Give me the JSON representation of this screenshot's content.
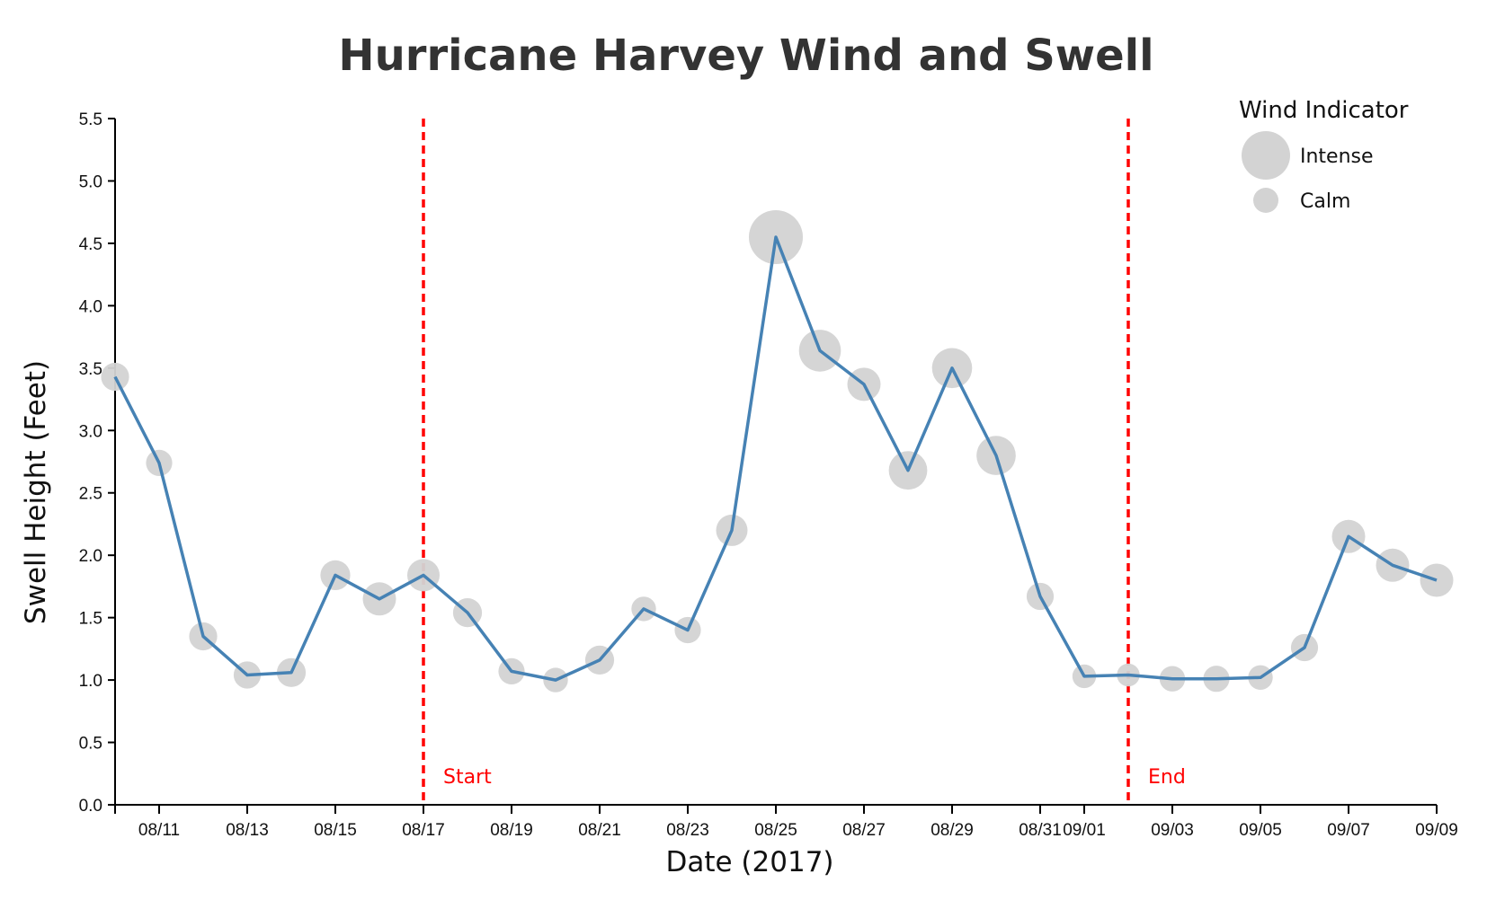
{
  "chart_data": {
    "type": "line",
    "title": "Hurricane Harvey Wind and Swell",
    "xlabel": "Date (2017)",
    "ylabel": "Swell Height (Feet)",
    "ylim": [
      0,
      5.5
    ],
    "yticks": [
      "0.0",
      "0.5",
      "1.0",
      "1.5",
      "2.0",
      "2.5",
      "3.0",
      "3.5",
      "4.0",
      "4.5",
      "5.0",
      "5.5"
    ],
    "xtick_labels": [
      "08/11",
      "08/13",
      "08/15",
      "08/17",
      "08/19",
      "08/21",
      "08/23",
      "08/25",
      "08/27",
      "08/29",
      "08/31",
      "09/01",
      "09/03",
      "09/05",
      "09/07",
      "09/09"
    ],
    "xtick_dates": [
      "2017-08-11",
      "2017-08-13",
      "2017-08-15",
      "2017-08-17",
      "2017-08-19",
      "2017-08-21",
      "2017-08-23",
      "2017-08-25",
      "2017-08-27",
      "2017-08-29",
      "2017-08-31",
      "2017-09-01",
      "2017-09-03",
      "2017-09-05",
      "2017-09-07",
      "2017-09-09"
    ],
    "xlim": [
      "2017-08-10",
      "2017-09-09"
    ],
    "grid": false,
    "line_color": "#4682b4",
    "point_color": "#d3d3d3",
    "series": [
      {
        "x": [
          "2017-08-10",
          "2017-08-11",
          "2017-08-12",
          "2017-08-13",
          "2017-08-14",
          "2017-08-15",
          "2017-08-16",
          "2017-08-17",
          "2017-08-18",
          "2017-08-19",
          "2017-08-20",
          "2017-08-21",
          "2017-08-22",
          "2017-08-23",
          "2017-08-24",
          "2017-08-25",
          "2017-08-26",
          "2017-08-27",
          "2017-08-28",
          "2017-08-29",
          "2017-08-30",
          "2017-08-31",
          "2017-09-01",
          "2017-09-02",
          "2017-09-03",
          "2017-09-04",
          "2017-09-05",
          "2017-09-06",
          "2017-09-07",
          "2017-09-08",
          "2017-09-09"
        ],
        "y": [
          3.43,
          2.74,
          1.35,
          1.04,
          1.06,
          1.84,
          1.65,
          1.84,
          1.54,
          1.07,
          1.0,
          1.16,
          1.57,
          1.4,
          2.2,
          4.55,
          3.64,
          3.37,
          2.68,
          3.5,
          2.8,
          1.67,
          1.03,
          1.04,
          1.01,
          1.01,
          1.02,
          1.26,
          2.15,
          1.92,
          1.8
        ],
        "wind": [
          0.4,
          0.36,
          0.4,
          0.38,
          0.42,
          0.44,
          0.52,
          0.5,
          0.42,
          0.36,
          0.32,
          0.42,
          0.32,
          0.36,
          0.48,
          1.0,
          0.72,
          0.52,
          0.64,
          0.68,
          0.66,
          0.38,
          0.3,
          0.28,
          0.34,
          0.36,
          0.32,
          0.38,
          0.52,
          0.52,
          0.52
        ]
      }
    ],
    "markers": [
      {
        "date": "2017-08-17",
        "label": "Start",
        "color": "#ff0000"
      },
      {
        "date": "2017-09-02",
        "label": "End",
        "color": "#ff0000"
      }
    ],
    "legend": {
      "title": "Wind Indicator",
      "position": "top-right",
      "items": [
        {
          "label": "Intense",
          "size": "large"
        },
        {
          "label": "Calm",
          "size": "small"
        }
      ]
    }
  }
}
